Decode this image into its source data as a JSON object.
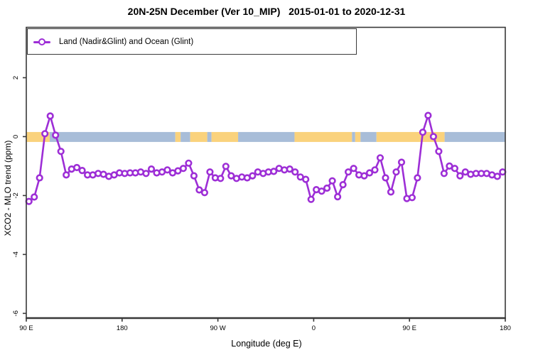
{
  "figure": {
    "title": "20N-25N December (Ver 10_MIP)   2015-01-01 to 2020-12-31"
  },
  "legend": {
    "label": "Land (Nadir&Glint) and Ocean (Glint)"
  },
  "colors": {
    "series": "#9D2ED6",
    "marker_fill": "#ffffff",
    "land_band": "#FAD27C",
    "ocean_band": "#A8BDD8",
    "frame": "#383838",
    "text": "#000000"
  },
  "chart_data": {
    "type": "line",
    "title": "20N-25N December (Ver 10_MIP)   2015-01-01 to 2020-12-31",
    "xlabel": "Longitude (deg E)",
    "ylabel": "XCO2 - MLO trend (ppm)",
    "xlim": [
      90,
      540
    ],
    "ylim": [
      -6.16,
      3.71
    ],
    "grid": false,
    "legend_position": "top-left",
    "x_ticks": [
      {
        "value": 90,
        "label": "90 E"
      },
      {
        "value": 180,
        "label": "180"
      },
      {
        "value": 270,
        "label": "90 W"
      },
      {
        "value": 360,
        "label": "0"
      },
      {
        "value": 450,
        "label": "90 E"
      },
      {
        "value": 540,
        "label": "180"
      }
    ],
    "y_ticks": [
      {
        "value": 2,
        "label": "2"
      },
      {
        "value": 0,
        "label": "0"
      },
      {
        "value": -2,
        "label": "-2"
      },
      {
        "value": -4,
        "label": "-4"
      },
      {
        "value": -6,
        "label": "-6"
      }
    ],
    "zero_band": {
      "description": "land/ocean surface strip centered on y=0",
      "y_center": 0,
      "land_color": "#FAD27C",
      "ocean_color": "#A8BDD8",
      "segments": [
        {
          "x0": 90,
          "x1": 112,
          "surface": "land"
        },
        {
          "x0": 112,
          "x1": 230,
          "surface": "ocean"
        },
        {
          "x0": 230,
          "x1": 235,
          "surface": "land"
        },
        {
          "x0": 235,
          "x1": 244,
          "surface": "ocean"
        },
        {
          "x0": 244,
          "x1": 260,
          "surface": "land"
        },
        {
          "x0": 260,
          "x1": 264,
          "surface": "ocean"
        },
        {
          "x0": 264,
          "x1": 289,
          "surface": "land"
        },
        {
          "x0": 289,
          "x1": 342,
          "surface": "ocean"
        },
        {
          "x0": 342,
          "x1": 396,
          "surface": "land"
        },
        {
          "x0": 396,
          "x1": 399,
          "surface": "ocean"
        },
        {
          "x0": 399,
          "x1": 404,
          "surface": "land"
        },
        {
          "x0": 404,
          "x1": 419,
          "surface": "ocean"
        },
        {
          "x0": 419,
          "x1": 483,
          "surface": "land"
        },
        {
          "x0": 483,
          "x1": 540,
          "surface": "ocean"
        }
      ]
    },
    "series": [
      {
        "name": "Land (Nadir&Glint) and Ocean (Glint)",
        "color": "#9D2ED6",
        "marker": "open-circle",
        "x": [
          92.5,
          97.5,
          102.5,
          107.5,
          112.5,
          117.5,
          122.5,
          127.5,
          132.5,
          137.5,
          142.5,
          147.5,
          152.5,
          157.5,
          162.5,
          167.5,
          172.5,
          177.5,
          182.5,
          187.5,
          192.5,
          197.5,
          202.5,
          207.5,
          212.5,
          217.5,
          222.5,
          227.5,
          232.5,
          237.5,
          242.5,
          247.5,
          252.5,
          257.5,
          262.5,
          267.5,
          272.5,
          277.5,
          282.5,
          287.5,
          292.5,
          297.5,
          302.5,
          307.5,
          312.5,
          317.5,
          322.5,
          327.5,
          332.5,
          337.5,
          342.5,
          347.5,
          352.5,
          357.5,
          362.5,
          367.5,
          372.5,
          377.5,
          382.5,
          387.5,
          392.5,
          397.5,
          402.5,
          407.5,
          412.5,
          417.5,
          422.5,
          427.5,
          432.5,
          437.5,
          442.5,
          447.5,
          452.5,
          457.5,
          462.5,
          467.5,
          472.5,
          477.5,
          482.5,
          487.5,
          492.5,
          497.5,
          502.5,
          507.5,
          512.5,
          517.5,
          522.5,
          527.5,
          532.5,
          537.5
        ],
        "y": [
          -2.2,
          -2.05,
          -1.4,
          0.1,
          0.7,
          0.05,
          -0.5,
          -1.3,
          -1.1,
          -1.05,
          -1.15,
          -1.3,
          -1.3,
          -1.25,
          -1.28,
          -1.35,
          -1.3,
          -1.23,
          -1.25,
          -1.23,
          -1.23,
          -1.2,
          -1.25,
          -1.1,
          -1.23,
          -1.2,
          -1.13,
          -1.23,
          -1.16,
          -1.08,
          -0.9,
          -1.33,
          -1.81,
          -1.9,
          -1.2,
          -1.4,
          -1.42,
          -1.01,
          -1.33,
          -1.42,
          -1.37,
          -1.4,
          -1.33,
          -1.2,
          -1.25,
          -1.2,
          -1.18,
          -1.08,
          -1.13,
          -1.1,
          -1.2,
          -1.37,
          -1.45,
          -2.13,
          -1.8,
          -1.85,
          -1.75,
          -1.5,
          -2.04,
          -1.63,
          -1.2,
          -1.08,
          -1.3,
          -1.33,
          -1.23,
          -1.13,
          -0.72,
          -1.4,
          -1.88,
          -1.2,
          -0.87,
          -2.1,
          -2.07,
          -1.4,
          0.15,
          0.72,
          0.0,
          -0.5,
          -1.25,
          -1.0,
          -1.08,
          -1.33,
          -1.2,
          -1.28,
          -1.25,
          -1.25,
          -1.25,
          -1.3,
          -1.35,
          -1.2
        ]
      }
    ]
  }
}
